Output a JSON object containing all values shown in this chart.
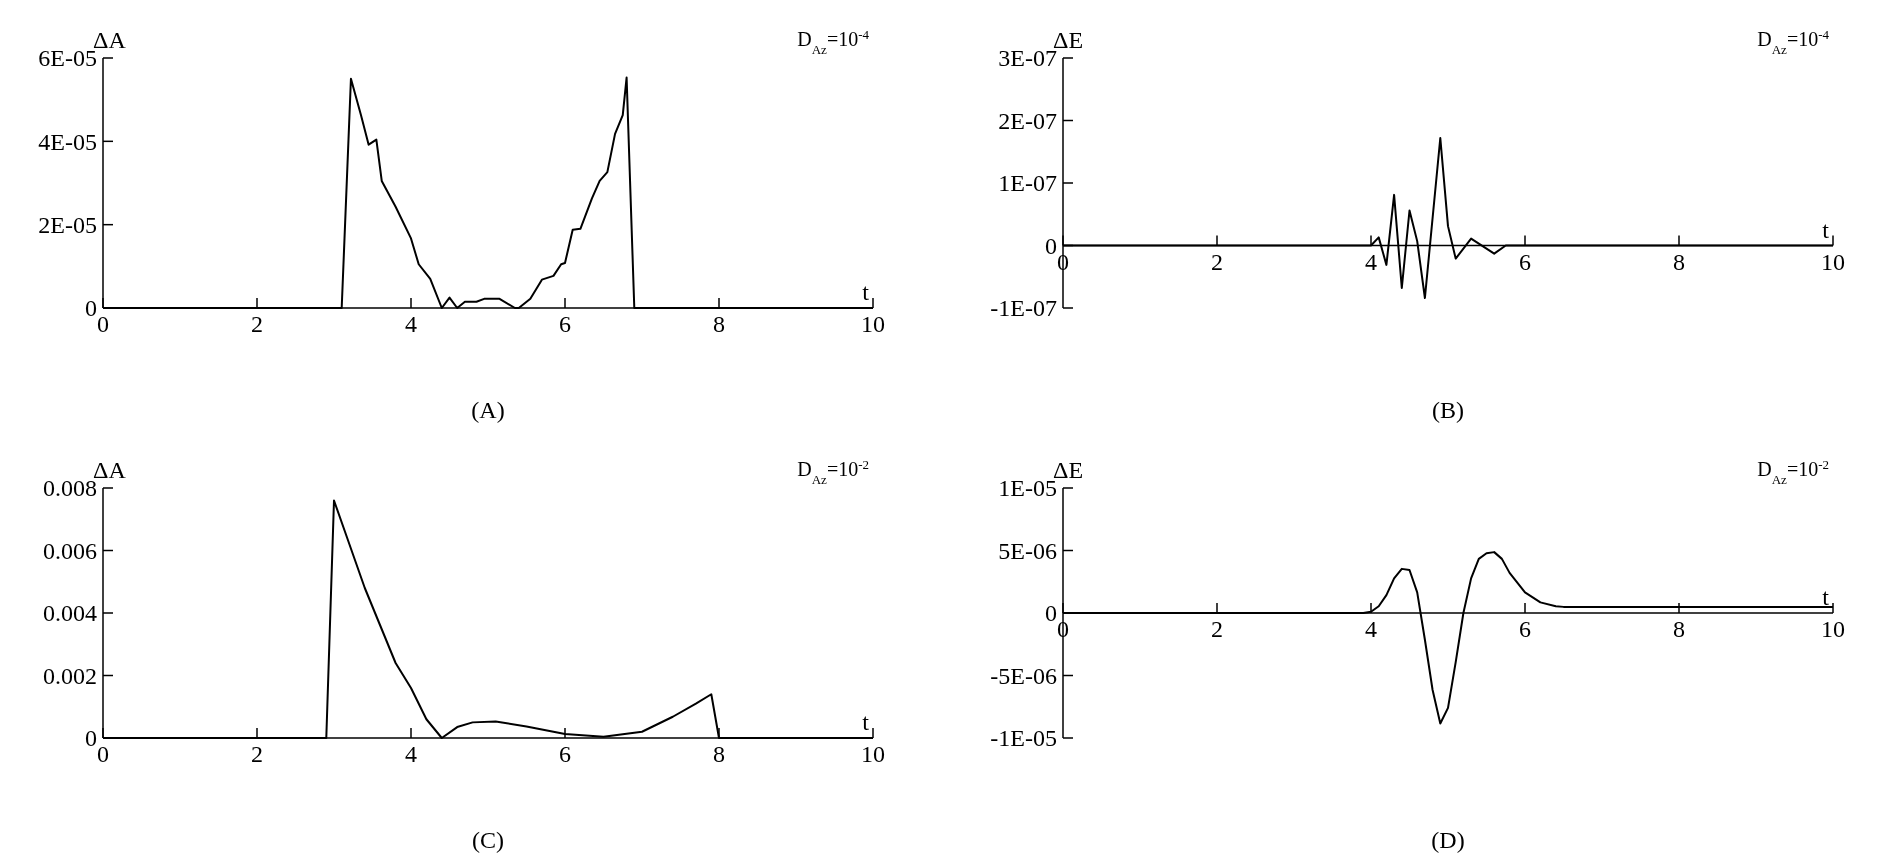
{
  "chart_data": [
    {
      "type": "line",
      "ylabel": "ΔA",
      "xlabel": "t",
      "annotations": [
        "D$_{Az}$=10$^{-4}$",
        "(A)"
      ],
      "xlim": [
        0,
        10
      ],
      "xticks": [
        0,
        2,
        4,
        6,
        8,
        10
      ],
      "ylim": [
        0,
        6e-05
      ],
      "yticks": [
        0,
        {
          "value": 2e-05,
          "label": "2E-05"
        },
        {
          "value": 4e-05,
          "label": "4E-05"
        },
        {
          "value": 6e-05,
          "label": "6E-05"
        }
      ],
      "grid": false,
      "line_style": "solid",
      "series": [
        {
          "color": "#000000",
          "x": [
            0,
            3.1,
            3.22,
            3.35,
            3.45,
            3.55,
            3.62,
            3.8,
            4.0,
            4.1,
            4.25,
            4.4,
            4.5,
            4.6,
            4.7,
            4.85,
            4.95,
            5.15,
            5.35,
            5.4,
            5.55,
            5.7,
            5.85,
            5.95,
            6.0,
            6.1,
            6.2,
            6.35,
            6.45,
            6.55,
            6.65,
            6.75,
            6.8,
            6.9,
            10
          ],
          "values": [
            0,
            0,
            5.5e-05,
            4.63e-05,
            3.92e-05,
            4.04e-05,
            3.05e-05,
            2.43e-05,
            1.67e-05,
            1.05e-05,
            7e-06,
            0,
            2.5e-06,
            0,
            1.5e-06,
            1.5e-06,
            2.2e-06,
            2.2e-06,
            0,
            0,
            2.2e-06,
            6.8e-06,
            7.7e-06,
            1.05e-05,
            1.08e-05,
            1.88e-05,
            1.9e-05,
            2.63e-05,
            3.05e-05,
            3.26e-05,
            4.18e-05,
            4.63e-05,
            5.53e-05,
            0,
            0
          ]
        }
      ]
    },
    {
      "type": "line",
      "ylabel": "ΔE",
      "xlabel": "t",
      "annotations": [
        "D$_{Az}$=10$^{-4}$",
        "(B)"
      ],
      "xlim": [
        0,
        10
      ],
      "xticks": [
        0,
        2,
        4,
        6,
        8,
        10
      ],
      "ylim": [
        -1e-07,
        3e-07
      ],
      "yticks": [
        {
          "value": -1e-07,
          "label": "-1E-07"
        },
        0,
        {
          "value": 1e-07,
          "label": "1E-07"
        },
        {
          "value": 2e-07,
          "label": "2E-07"
        },
        {
          "value": 3e-07,
          "label": "3E-07"
        }
      ],
      "grid": false,
      "line_style": "solid",
      "series": [
        {
          "color": "#000000",
          "x": [
            0,
            4.0,
            4.1,
            4.2,
            4.3,
            4.4,
            4.5,
            4.6,
            4.7,
            4.9,
            5.0,
            5.1,
            5.3,
            5.6,
            5.75,
            10
          ],
          "values": [
            0,
            0,
            1.3e-08,
            -3.1e-08,
            8.1e-08,
            -6.8e-08,
            5.6e-08,
            7e-09,
            -8.4e-08,
            1.72e-07,
            3.1e-08,
            -2.1e-08,
            1.1e-08,
            -1.3e-08,
            0,
            0
          ]
        }
      ]
    },
    {
      "type": "line",
      "ylabel": "ΔA",
      "xlabel": "t",
      "annotations": [
        "D$_{Az}$=10$^{-2}$",
        "(C)"
      ],
      "xlim": [
        0,
        10
      ],
      "xticks": [
        0,
        2,
        4,
        6,
        8,
        10
      ],
      "ylim": [
        0,
        0.008
      ],
      "yticks": [
        0,
        0.002,
        0.004,
        0.006,
        0.008
      ],
      "grid": false,
      "line_style": "solid",
      "series": [
        {
          "color": "#000000",
          "x": [
            0,
            2.9,
            3.0,
            3.2,
            3.4,
            3.6,
            3.8,
            4.0,
            4.2,
            4.4,
            4.6,
            4.8,
            5.1,
            5.5,
            6.0,
            6.5,
            7.0,
            7.4,
            7.7,
            7.9,
            8.0,
            10
          ],
          "values": [
            0,
            0,
            0.0076,
            0.0062,
            0.0048,
            0.0036,
            0.0024,
            0.0016,
            0.0006,
            0,
            0.00035,
            0.0005,
            0.00053,
            0.00037,
            0.00013,
            4e-05,
            0.0002,
            0.00068,
            0.0011,
            0.0014,
            0,
            0
          ]
        }
      ]
    },
    {
      "type": "line",
      "ylabel": "ΔE",
      "xlabel": "t",
      "annotations": [
        "D$_{Az}$=10$^{-2}$",
        "(D)"
      ],
      "xlim": [
        0,
        10
      ],
      "xticks": [
        0,
        2,
        4,
        6,
        8,
        10
      ],
      "ylim": [
        -1e-05,
        1e-05
      ],
      "yticks": [
        {
          "value": -1e-05,
          "label": "-1E-05"
        },
        {
          "value": -5e-06,
          "label": "-5E-06"
        },
        0,
        {
          "value": 5e-06,
          "label": "5E-06"
        },
        {
          "value": 1e-05,
          "label": "1E-05"
        }
      ],
      "grid": false,
      "line_style": "solid",
      "series": [
        {
          "color": "#000000",
          "x": [
            0,
            3.9,
            4.0,
            4.1,
            4.2,
            4.3,
            4.4,
            4.5,
            4.6,
            4.7,
            4.8,
            4.9,
            5.0,
            5.1,
            5.2,
            5.3,
            5.4,
            5.5,
            5.6,
            5.7,
            5.8,
            6.0,
            6.2,
            6.4,
            6.5,
            10
          ],
          "values": [
            0,
            0,
            1e-07,
            5.4e-07,
            1.43e-06,
            2.77e-06,
            3.53e-06,
            3.44e-06,
            1.65e-06,
            -2.14e-06,
            -6.16e-06,
            -8.84e-06,
            -7.59e-06,
            -3.93e-06,
            0,
            2.77e-06,
            4.33e-06,
            4.78e-06,
            4.87e-06,
            4.33e-06,
            3.21e-06,
            1.65e-06,
            8.5e-07,
            5.4e-07,
            4.9e-07,
            4.9e-07
          ]
        }
      ]
    }
  ]
}
